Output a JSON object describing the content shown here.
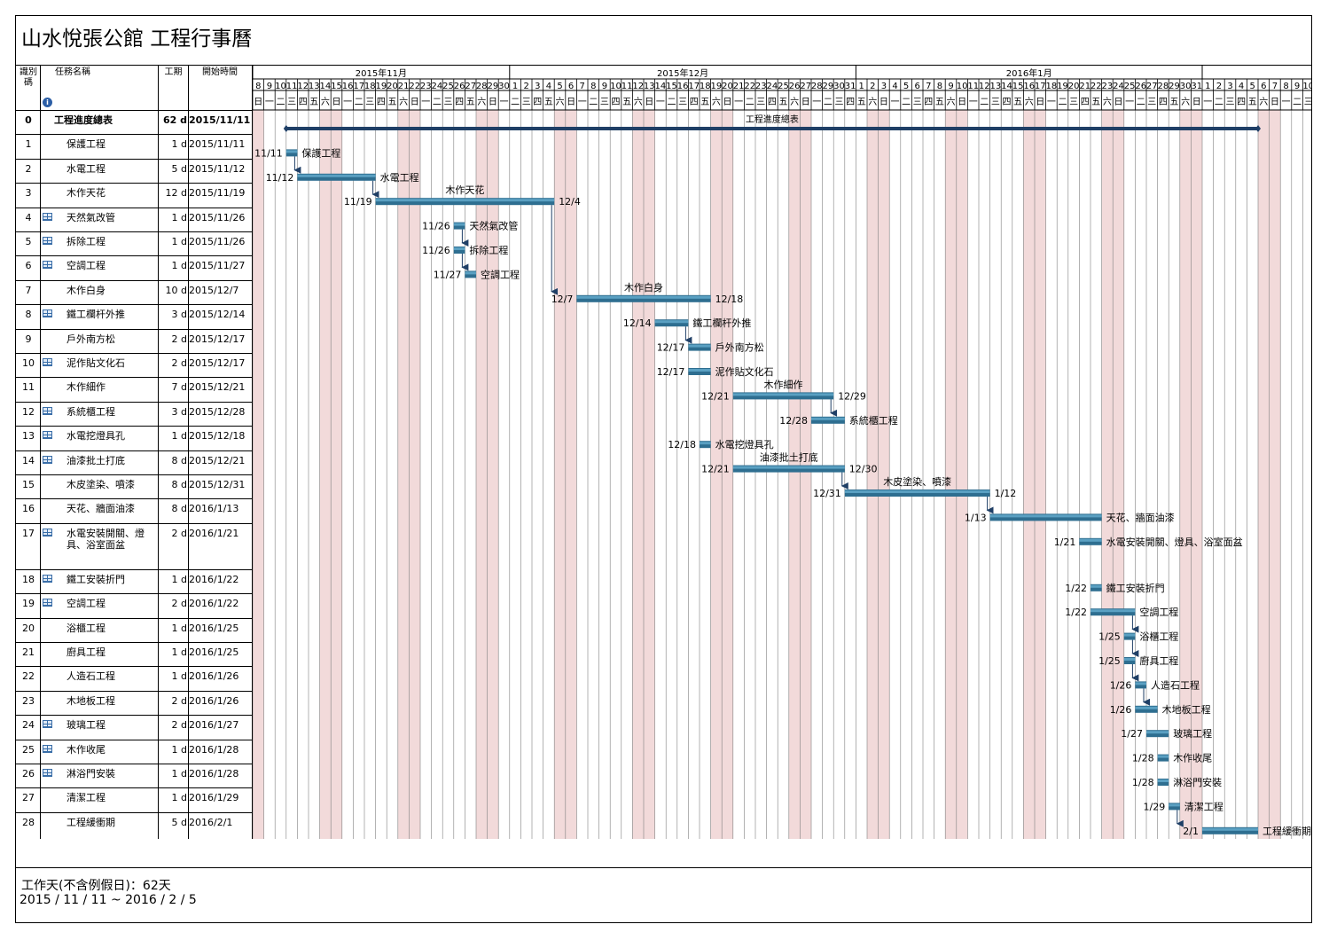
{
  "title": "山水悅張公館 工程行事曆",
  "table_headers": {
    "id": "識別碼",
    "name": "任務名稱",
    "duration": "工期",
    "start": "開始時間"
  },
  "timeline": {
    "first_date": "2015-11-08",
    "day_count": 95,
    "months": [
      {
        "label": "2015年11月",
        "start_day": 0
      },
      {
        "label": "2015年12月",
        "start_day": 23
      },
      {
        "label": "2016年1月",
        "start_day": 54
      },
      {
        "label": "",
        "start_day": 85
      }
    ]
  },
  "colors": {
    "bar": "#2e6e90",
    "bar_light": "#5aa0c2",
    "weekend": "#f2dada",
    "grid": "#808080",
    "accent_icon": "#3a6ea8"
  },
  "tasks": [
    {
      "id": "0",
      "name": "工程進度總表",
      "duration": "62 d",
      "start": "2015/11/11",
      "summary": true,
      "indicator": false,
      "bar_start": "2015-11-11",
      "bar_end": "2016-02-05",
      "label_left": "",
      "label_right": "",
      "label_top": "工程進度總表"
    },
    {
      "id": "1",
      "name": "保護工程",
      "duration": "1 d",
      "start": "2015/11/11",
      "indicator": false,
      "bar_start": "2015-11-11",
      "bar_end": "2015-11-11",
      "label_left": "11/11",
      "label_right": "保護工程",
      "label_top": ""
    },
    {
      "id": "2",
      "name": "水電工程",
      "duration": "5 d",
      "start": "2015/11/12",
      "indicator": false,
      "bar_start": "2015-11-12",
      "bar_end": "2015-11-18",
      "label_left": "11/12",
      "label_right": "水電工程",
      "label_top": ""
    },
    {
      "id": "3",
      "name": "木作天花",
      "duration": "12 d",
      "start": "2015/11/19",
      "indicator": false,
      "bar_start": "2015-11-19",
      "bar_end": "2015-12-04",
      "label_left": "11/19",
      "label_right": "12/4",
      "label_top": "木作天花"
    },
    {
      "id": "4",
      "name": "天然氣改管",
      "duration": "1 d",
      "start": "2015/11/26",
      "indicator": true,
      "bar_start": "2015-11-26",
      "bar_end": "2015-11-26",
      "label_left": "11/26",
      "label_right": "天然氣改管",
      "label_top": ""
    },
    {
      "id": "5",
      "name": "拆除工程",
      "duration": "1 d",
      "start": "2015/11/26",
      "indicator": true,
      "bar_start": "2015-11-26",
      "bar_end": "2015-11-26",
      "label_left": "11/26",
      "label_right": "拆除工程",
      "label_top": ""
    },
    {
      "id": "6",
      "name": "空調工程",
      "duration": "1 d",
      "start": "2015/11/27",
      "indicator": true,
      "bar_start": "2015-11-27",
      "bar_end": "2015-11-27",
      "label_left": "11/27",
      "label_right": "空調工程",
      "label_top": ""
    },
    {
      "id": "7",
      "name": "木作白身",
      "duration": "10 d",
      "start": "2015/12/7",
      "indicator": false,
      "bar_start": "2015-12-07",
      "bar_end": "2015-12-18",
      "label_left": "12/7",
      "label_right": "12/18",
      "label_top": "木作白身"
    },
    {
      "id": "8",
      "name": "鐵工欄杆外推",
      "duration": "3 d",
      "start": "2015/12/14",
      "indicator": true,
      "bar_start": "2015-12-14",
      "bar_end": "2015-12-16",
      "label_left": "12/14",
      "label_right": "鐵工欄杆外推",
      "label_top": ""
    },
    {
      "id": "9",
      "name": "戶外南方松",
      "duration": "2 d",
      "start": "2015/12/17",
      "indicator": false,
      "bar_start": "2015-12-17",
      "bar_end": "2015-12-18",
      "label_left": "12/17",
      "label_right": "戶外南方松",
      "label_top": ""
    },
    {
      "id": "10",
      "name": "泥作貼文化石",
      "duration": "2 d",
      "start": "2015/12/17",
      "indicator": true,
      "bar_start": "2015-12-17",
      "bar_end": "2015-12-18",
      "label_left": "12/17",
      "label_right": "泥作貼文化石",
      "label_top": ""
    },
    {
      "id": "11",
      "name": "木作細作",
      "duration": "7 d",
      "start": "2015/12/21",
      "indicator": false,
      "bar_start": "2015-12-21",
      "bar_end": "2015-12-29",
      "label_left": "12/21",
      "label_right": "12/29",
      "label_top": "木作細作"
    },
    {
      "id": "12",
      "name": "系統櫃工程",
      "duration": "3 d",
      "start": "2015/12/28",
      "indicator": true,
      "bar_start": "2015-12-28",
      "bar_end": "2015-12-30",
      "label_left": "12/28",
      "label_right": "系統櫃工程",
      "label_top": ""
    },
    {
      "id": "13",
      "name": "水電挖燈具孔",
      "duration": "1 d",
      "start": "2015/12/18",
      "indicator": true,
      "bar_start": "2015-12-18",
      "bar_end": "2015-12-18",
      "label_left": "12/18",
      "label_right": "水電挖燈具孔",
      "label_top": ""
    },
    {
      "id": "14",
      "name": "油漆批土打底",
      "duration": "8 d",
      "start": "2015/12/21",
      "indicator": true,
      "bar_start": "2015-12-21",
      "bar_end": "2015-12-30",
      "label_left": "12/21",
      "label_right": "12/30",
      "label_top": "油漆批土打底"
    },
    {
      "id": "15",
      "name": "木皮塗染、噴漆",
      "duration": "8 d",
      "start": "2015/12/31",
      "indicator": false,
      "bar_start": "2015-12-31",
      "bar_end": "2016-01-12",
      "label_left": "12/31",
      "label_right": "1/12",
      "label_top": "木皮塗染、噴漆"
    },
    {
      "id": "16",
      "name": "天花、牆面油漆",
      "duration": "8 d",
      "start": "2016/1/13",
      "indicator": false,
      "bar_start": "2016-01-13",
      "bar_end": "2016-01-22",
      "label_left": "1/13",
      "label_right": "天花、牆面油漆",
      "label_top": ""
    },
    {
      "id": "17",
      "name": "水電安裝開關、燈具、浴室面盆",
      "duration": "2 d",
      "start": "2016/1/21",
      "indicator": true,
      "tall": true,
      "bar_start": "2016-01-21",
      "bar_end": "2016-01-22",
      "label_left": "1/21",
      "label_right": "水電安裝開關、燈具、浴室面盆",
      "label_top": ""
    },
    {
      "id": "18",
      "name": "鐵工安裝折門",
      "duration": "1 d",
      "start": "2016/1/22",
      "indicator": true,
      "bar_start": "2016-01-22",
      "bar_end": "2016-01-22",
      "label_left": "1/22",
      "label_right": "鐵工安裝折門",
      "label_top": ""
    },
    {
      "id": "19",
      "name": "空調工程",
      "duration": "2 d",
      "start": "2016/1/22",
      "indicator": true,
      "bar_start": "2016-01-22",
      "bar_end": "2016-01-25",
      "label_left": "1/22",
      "label_right": "空調工程",
      "label_top": ""
    },
    {
      "id": "20",
      "name": "浴櫃工程",
      "duration": "1 d",
      "start": "2016/1/25",
      "indicator": false,
      "bar_start": "2016-01-25",
      "bar_end": "2016-01-25",
      "label_left": "1/25",
      "label_right": "浴櫃工程",
      "label_top": ""
    },
    {
      "id": "21",
      "name": "廚具工程",
      "duration": "1 d",
      "start": "2016/1/25",
      "indicator": false,
      "bar_start": "2016-01-25",
      "bar_end": "2016-01-25",
      "label_left": "1/25",
      "label_right": "廚具工程",
      "label_top": ""
    },
    {
      "id": "22",
      "name": "人造石工程",
      "duration": "1 d",
      "start": "2016/1/26",
      "indicator": false,
      "bar_start": "2016-01-26",
      "bar_end": "2016-01-26",
      "label_left": "1/26",
      "label_right": "人造石工程",
      "label_top": ""
    },
    {
      "id": "23",
      "name": "木地板工程",
      "duration": "2 d",
      "start": "2016/1/26",
      "indicator": false,
      "bar_start": "2016-01-26",
      "bar_end": "2016-01-27",
      "label_left": "1/26",
      "label_right": "木地板工程",
      "label_top": ""
    },
    {
      "id": "24",
      "name": "玻璃工程",
      "duration": "2 d",
      "start": "2016/1/27",
      "indicator": true,
      "bar_start": "2016-01-27",
      "bar_end": "2016-01-28",
      "label_left": "1/27",
      "label_right": "玻璃工程",
      "label_top": ""
    },
    {
      "id": "25",
      "name": "木作收尾",
      "duration": "1 d",
      "start": "2016/1/28",
      "indicator": true,
      "bar_start": "2016-01-28",
      "bar_end": "2016-01-28",
      "label_left": "1/28",
      "label_right": "木作收尾",
      "label_top": ""
    },
    {
      "id": "26",
      "name": "淋浴門安裝",
      "duration": "1 d",
      "start": "2016/1/28",
      "indicator": true,
      "bar_start": "2016-01-28",
      "bar_end": "2016-01-28",
      "label_left": "1/28",
      "label_right": "淋浴門安裝",
      "label_top": ""
    },
    {
      "id": "27",
      "name": "清潔工程",
      "duration": "1 d",
      "start": "2016/1/29",
      "indicator": false,
      "bar_start": "2016-01-29",
      "bar_end": "2016-01-29",
      "label_left": "1/29",
      "label_right": "清潔工程",
      "label_top": ""
    },
    {
      "id": "28",
      "name": "工程緩衝期",
      "duration": "5 d",
      "start": "2016/2/1",
      "indicator": false,
      "bar_start": "2016-02-01",
      "bar_end": "2016-02-05",
      "label_left": "2/1",
      "label_right": "工程緩衝期",
      "label_top": ""
    }
  ],
  "dependencies": [
    [
      1,
      2
    ],
    [
      2,
      3
    ],
    [
      3,
      7
    ],
    [
      4,
      5
    ],
    [
      5,
      6
    ],
    [
      8,
      9
    ],
    [
      11,
      12
    ],
    [
      14,
      15
    ],
    [
      15,
      16
    ],
    [
      19,
      20
    ],
    [
      20,
      21
    ],
    [
      21,
      22
    ],
    [
      22,
      23
    ],
    [
      27,
      28
    ]
  ],
  "footer": {
    "workdays": "工作天(不含例假日)：62天",
    "range": "2015 / 11 / 11 ~ 2016 / 2 / 5"
  }
}
